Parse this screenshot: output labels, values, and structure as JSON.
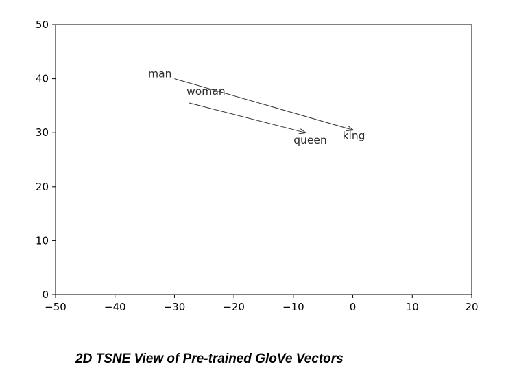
{
  "chart_data": {
    "type": "scatter",
    "title": "",
    "xlabel": "",
    "ylabel": "",
    "xlim": [
      -50,
      20
    ],
    "ylim": [
      0,
      50
    ],
    "xticks": [
      -50,
      -40,
      -30,
      -20,
      -10,
      0,
      10,
      20
    ],
    "yticks": [
      0,
      10,
      20,
      30,
      40,
      50
    ],
    "xtick_labels": [
      "−50",
      "−40",
      "−30",
      "−20",
      "−10",
      "0",
      "10",
      "20"
    ],
    "ytick_labels": [
      "0",
      "10",
      "20",
      "30",
      "40",
      "50"
    ],
    "grid": false,
    "points": [
      {
        "label": "man",
        "x": -30,
        "y": 40
      },
      {
        "label": "woman",
        "x": -27.5,
        "y": 35.5
      },
      {
        "label": "queen",
        "x": -8,
        "y": 30
      },
      {
        "label": "king",
        "x": 0,
        "y": 30.5
      }
    ],
    "arrows": [
      {
        "from": "man",
        "to": "king"
      },
      {
        "from": "woman",
        "to": "queen"
      }
    ]
  },
  "caption": "2D TSNE View of Pre-trained GloVe Vectors"
}
